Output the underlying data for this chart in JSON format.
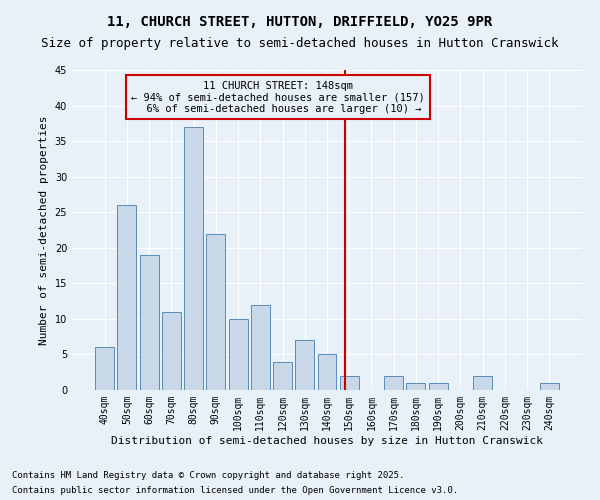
{
  "title": "11, CHURCH STREET, HUTTON, DRIFFIELD, YO25 9PR",
  "subtitle": "Size of property relative to semi-detached houses in Hutton Cranswick",
  "xlabel": "Distribution of semi-detached houses by size in Hutton Cranswick",
  "ylabel": "Number of semi-detached properties",
  "categories": [
    "40sqm",
    "50sqm",
    "60sqm",
    "70sqm",
    "80sqm",
    "90sqm",
    "100sqm",
    "110sqm",
    "120sqm",
    "130sqm",
    "140sqm",
    "150sqm",
    "160sqm",
    "170sqm",
    "180sqm",
    "190sqm",
    "200sqm",
    "210sqm",
    "220sqm",
    "230sqm",
    "240sqm"
  ],
  "values": [
    6,
    26,
    19,
    11,
    37,
    22,
    10,
    12,
    4,
    7,
    5,
    2,
    0,
    2,
    1,
    1,
    0,
    2,
    0,
    0,
    1
  ],
  "bar_color": "#c8d8e8",
  "bar_edge_color": "#5b8db8",
  "background_color": "#e8f0f8",
  "grid_color": "#ffffff",
  "marker_line_color": "#cc0000",
  "annotation_box_color": "#cc0000",
  "ylim": [
    0,
    45
  ],
  "yticks": [
    0,
    5,
    10,
    15,
    20,
    25,
    30,
    35,
    40,
    45
  ],
  "marker_label": "11 CHURCH STREET: 148sqm",
  "marker_smaller_pct": "94%",
  "marker_smaller_n": 157,
  "marker_larger_pct": "6%",
  "marker_larger_n": 10,
  "footnote1": "Contains HM Land Registry data © Crown copyright and database right 2025.",
  "footnote2": "Contains public sector information licensed under the Open Government Licence v3.0.",
  "title_fontsize": 10,
  "subtitle_fontsize": 9,
  "axis_label_fontsize": 8,
  "tick_fontsize": 7,
  "annotation_fontsize": 7.5,
  "footnote_fontsize": 6.5
}
